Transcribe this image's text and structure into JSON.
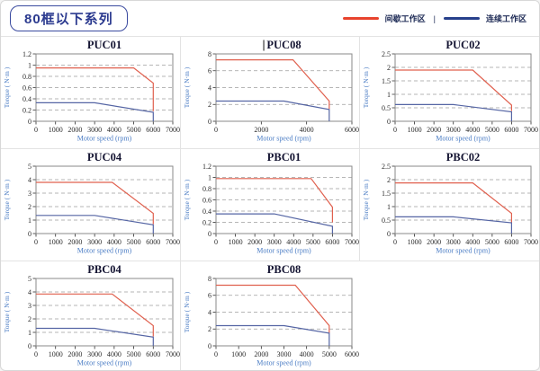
{
  "header": {
    "series_badge": "80框以下系列",
    "legend": {
      "intermittent_label": "间歇工作区",
      "separator": "|",
      "continuous_label": "连续工作区"
    }
  },
  "colors": {
    "legend_red": "#e8432d",
    "legend_navy": "#27408b",
    "chart_red": "#e0604e",
    "chart_blue": "#5565a4",
    "grid": "#9e9e9e",
    "axis_box": "#8a8a8a",
    "tick_text": "#2a2a2a",
    "axis_label_blue": "#4a7cc4",
    "title_text": "#141432",
    "header_navy": "#2b3a8f",
    "cell_border": "#e3e3e3"
  },
  "chart_data": [
    {
      "type": "line",
      "title": "PUC01",
      "xlabel": "Motor speed (rpm)",
      "ylabel": "Torque ( N·m )",
      "xlim": [
        0,
        7000
      ],
      "xticks": [
        0,
        1000,
        2000,
        3000,
        4000,
        5000,
        6000,
        7000
      ],
      "ylim": [
        0,
        1.2
      ],
      "yticks": [
        0,
        0.2,
        0.4,
        0.6,
        0.8,
        1,
        1.2
      ],
      "grid": "dashed-horizontal",
      "series": [
        {
          "name": "间歇工作区",
          "points": [
            [
              0,
              0.95
            ],
            [
              5000,
              0.95
            ],
            [
              6000,
              0.68
            ],
            [
              6000,
              0.18
            ]
          ]
        },
        {
          "name": "连续工作区",
          "points": [
            [
              0,
              0.33
            ],
            [
              3000,
              0.33
            ],
            [
              6000,
              0.16
            ],
            [
              6000,
              0
            ]
          ]
        }
      ]
    },
    {
      "type": "line",
      "title": "PUC08",
      "text_cursor": true,
      "xlabel": "Motor speed (rpm)",
      "ylabel": "Torque ( N·m )",
      "xlim": [
        0,
        6000
      ],
      "xticks": [
        0,
        2000,
        4000,
        6000
      ],
      "ylim": [
        0,
        8
      ],
      "yticks": [
        0,
        2,
        4,
        6,
        8
      ],
      "grid": "dashed-horizontal",
      "series": [
        {
          "name": "间歇工作区",
          "points": [
            [
              0,
              7.3
            ],
            [
              3400,
              7.3
            ],
            [
              5000,
              2.4
            ],
            [
              5000,
              1.45
            ]
          ]
        },
        {
          "name": "连续工作区",
          "points": [
            [
              0,
              2.4
            ],
            [
              3000,
              2.4
            ],
            [
              5000,
              1.4
            ],
            [
              5000,
              0
            ]
          ]
        }
      ]
    },
    {
      "type": "line",
      "title": "PUC02",
      "xlabel": "Motor speed (rpm)",
      "ylabel": "Torque ( N·m )",
      "xlim": [
        0,
        7000
      ],
      "xticks": [
        0,
        1000,
        2000,
        3000,
        4000,
        5000,
        6000,
        7000
      ],
      "ylim": [
        0,
        2.5
      ],
      "yticks": [
        0,
        0.5,
        1,
        1.5,
        2,
        2.5
      ],
      "grid": "dashed-horizontal",
      "series": [
        {
          "name": "间歇工作区",
          "points": [
            [
              0,
              1.9
            ],
            [
              4000,
              1.9
            ],
            [
              6000,
              0.6
            ],
            [
              6000,
              0.38
            ]
          ]
        },
        {
          "name": "连续工作区",
          "points": [
            [
              0,
              0.62
            ],
            [
              3000,
              0.62
            ],
            [
              6000,
              0.35
            ],
            [
              6000,
              0
            ]
          ]
        }
      ]
    },
    {
      "type": "line",
      "title": "PUC04",
      "xlabel": "Motor speed (rpm)",
      "ylabel": "Torque ( N·m )",
      "xlim": [
        0,
        7000
      ],
      "xticks": [
        0,
        1000,
        2000,
        3000,
        4000,
        5000,
        6000,
        7000
      ],
      "ylim": [
        0,
        5
      ],
      "yticks": [
        0,
        1,
        2,
        3,
        4,
        5
      ],
      "grid": "dashed-horizontal",
      "series": [
        {
          "name": "间歇工作区",
          "points": [
            [
              0,
              3.8
            ],
            [
              3900,
              3.8
            ],
            [
              6000,
              1.5
            ],
            [
              6000,
              0.7
            ]
          ]
        },
        {
          "name": "连续工作区",
          "points": [
            [
              0,
              1.35
            ],
            [
              3000,
              1.35
            ],
            [
              6000,
              0.65
            ],
            [
              6000,
              0
            ]
          ]
        }
      ]
    },
    {
      "type": "line",
      "title": "PBC01",
      "xlabel": "Motor speed (rpm)",
      "ylabel": "Torque ( N·m )",
      "xlim": [
        0,
        7000
      ],
      "xticks": [
        0,
        1000,
        2000,
        3000,
        4000,
        5000,
        6000,
        7000
      ],
      "ylim": [
        0,
        1.2
      ],
      "yticks": [
        0,
        0.2,
        0.4,
        0.6,
        0.8,
        1,
        1.2
      ],
      "grid": "dashed-horizontal",
      "series": [
        {
          "name": "间歇工作区",
          "points": [
            [
              0,
              0.98
            ],
            [
              4900,
              0.98
            ],
            [
              6000,
              0.47
            ],
            [
              6000,
              0.2
            ]
          ]
        },
        {
          "name": "连续工作区",
          "points": [
            [
              0,
              0.35
            ],
            [
              3000,
              0.35
            ],
            [
              6000,
              0.13
            ],
            [
              6000,
              0
            ]
          ]
        }
      ]
    },
    {
      "type": "line",
      "title": "PBC02",
      "xlabel": "Motor speed (rpm)",
      "ylabel": "Torque ( N·m )",
      "xlim": [
        0,
        7000
      ],
      "xticks": [
        0,
        1000,
        2000,
        3000,
        4000,
        5000,
        6000,
        7000
      ],
      "ylim": [
        0,
        2.5
      ],
      "yticks": [
        0,
        0.5,
        1,
        1.5,
        2,
        2.5
      ],
      "grid": "dashed-horizontal",
      "series": [
        {
          "name": "间歇工作区",
          "points": [
            [
              0,
              1.88
            ],
            [
              4000,
              1.88
            ],
            [
              6000,
              0.75
            ],
            [
              6000,
              0.4
            ]
          ]
        },
        {
          "name": "连续工作区",
          "points": [
            [
              0,
              0.62
            ],
            [
              3000,
              0.62
            ],
            [
              6000,
              0.4
            ],
            [
              6000,
              0
            ]
          ]
        }
      ]
    },
    {
      "type": "line",
      "title": "PBC04",
      "xlabel": "Motor speed (rpm)",
      "ylabel": "Torque ( N·m )",
      "xlim": [
        0,
        7000
      ],
      "xticks": [
        0,
        1000,
        2000,
        3000,
        4000,
        5000,
        6000,
        7000
      ],
      "ylim": [
        0,
        5
      ],
      "yticks": [
        0,
        1,
        2,
        3,
        4,
        5
      ],
      "grid": "dashed-horizontal",
      "series": [
        {
          "name": "间歇工作区",
          "points": [
            [
              0,
              3.85
            ],
            [
              3900,
              3.85
            ],
            [
              6000,
              1.5
            ],
            [
              6000,
              0.7
            ]
          ]
        },
        {
          "name": "连续工作区",
          "points": [
            [
              0,
              1.3
            ],
            [
              3000,
              1.3
            ],
            [
              6000,
              0.65
            ],
            [
              6000,
              0
            ]
          ]
        }
      ]
    },
    {
      "type": "line",
      "title": "PBC08",
      "xlabel": "Motor speed (rpm)",
      "ylabel": "Torque ( N·m )",
      "xlim": [
        0,
        6000
      ],
      "xticks": [
        0,
        1000,
        2000,
        3000,
        4000,
        5000,
        6000
      ],
      "ylim": [
        0,
        8
      ],
      "yticks": [
        0,
        2,
        4,
        6,
        8
      ],
      "grid": "dashed-horizontal",
      "series": [
        {
          "name": "间歇工作区",
          "points": [
            [
              0,
              7.2
            ],
            [
              3500,
              7.2
            ],
            [
              5000,
              2.4
            ],
            [
              5000,
              1.5
            ]
          ]
        },
        {
          "name": "连续工作区",
          "points": [
            [
              0,
              2.4
            ],
            [
              3000,
              2.4
            ],
            [
              5000,
              1.5
            ],
            [
              5000,
              0
            ]
          ]
        }
      ]
    }
  ]
}
